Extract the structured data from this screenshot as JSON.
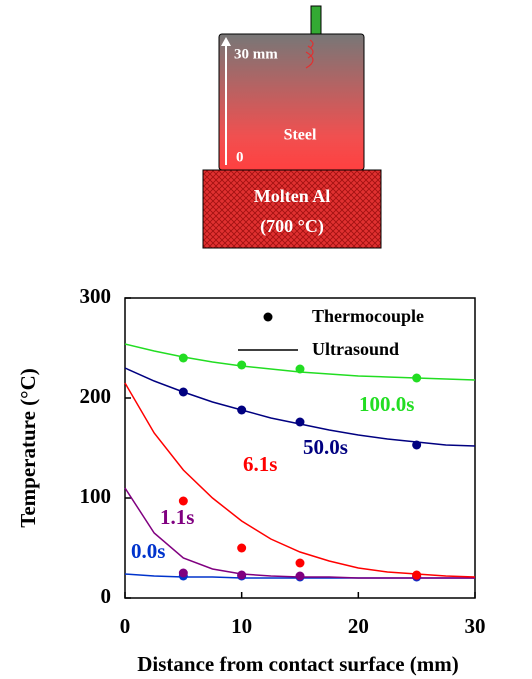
{
  "diagram": {
    "thickness": "30 mm",
    "material": "Steel",
    "origin": "0",
    "melt": "Molten Al",
    "melt_temp": "(700 °C)"
  },
  "chart_data": {
    "type": "line",
    "x_label": "Distance from contact surface (mm)",
    "y_label": "Temperature (°C)",
    "legend": [
      "Thermocouple",
      "Ultrasound"
    ],
    "x": [
      0,
      2.5,
      5,
      7.5,
      10,
      12.5,
      15,
      17.5,
      20,
      22.5,
      25,
      27.5,
      30
    ],
    "points_x": [
      5,
      10,
      15,
      25
    ],
    "series": [
      {
        "name": "0.0s",
        "color": "#0033cc",
        "values": [
          24,
          22,
          21,
          21,
          20,
          20,
          20,
          20,
          20,
          20,
          20,
          20,
          20
        ],
        "points": [
          22,
          22,
          21,
          21
        ]
      },
      {
        "name": "1.1s",
        "color": "#800080",
        "values": [
          110,
          65,
          40,
          29,
          24,
          22,
          21,
          21,
          20,
          20,
          20,
          20,
          20
        ],
        "points": [
          25,
          23,
          22,
          22
        ]
      },
      {
        "name": "6.1s",
        "color": "#ff0000",
        "values": [
          215,
          165,
          128,
          100,
          77,
          59,
          46,
          37,
          30,
          26,
          24,
          22,
          21
        ],
        "points": [
          97,
          50,
          35,
          23
        ]
      },
      {
        "name": "50.0s",
        "color": "#000080",
        "values": [
          230,
          217,
          206,
          196,
          188,
          180,
          174,
          168,
          163,
          159,
          156,
          153,
          152
        ],
        "points": [
          206,
          188,
          176,
          153
        ]
      },
      {
        "name": "100.0s",
        "color": "#22dd22",
        "values": [
          254,
          247,
          241,
          236,
          232,
          229,
          226,
          224,
          222,
          221,
          220,
          219,
          218
        ],
        "points": [
          240,
          233,
          229,
          220
        ]
      }
    ],
    "xlim": [
      0,
      30
    ],
    "ylim": [
      0,
      300
    ],
    "xticks": [
      0,
      10,
      20,
      30
    ],
    "yticks": [
      0,
      100,
      200,
      300
    ]
  }
}
